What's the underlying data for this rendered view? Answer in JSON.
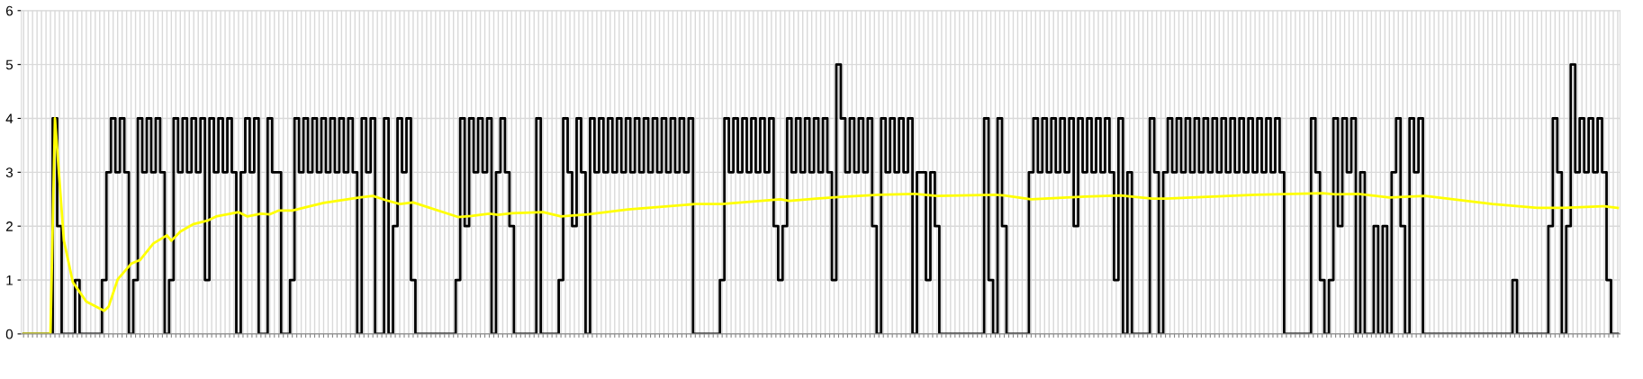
{
  "chart_data": {
    "type": "step",
    "categories": [
      null,
      null,
      null,
      null,
      null,
      null,
      null,
      null,
      null,
      null,
      null,
      null,
      null,
      null,
      null,
      null,
      null,
      null,
      null,
      null,
      null,
      null,
      null,
      null,
      null,
      null,
      null,
      null,
      null,
      null,
      null,
      null,
      null,
      null,
      null,
      null,
      null,
      null,
      null,
      null,
      null,
      null,
      null,
      null,
      null,
      null,
      null,
      null,
      null,
      null,
      null,
      null,
      null,
      null,
      null,
      null,
      null,
      null,
      null,
      null,
      null,
      null,
      null,
      null,
      null,
      null,
      null,
      null,
      null,
      null,
      null,
      null,
      null,
      null,
      null,
      null,
      null,
      null,
      null,
      null,
      null,
      null,
      null,
      null,
      null,
      null,
      null,
      null,
      null,
      null,
      null,
      null,
      null,
      null,
      null,
      null,
      null,
      null,
      null,
      null,
      null,
      null,
      null,
      null,
      null,
      null,
      null,
      null,
      null,
      null,
      null,
      null,
      null,
      null,
      null,
      null,
      null,
      null,
      null,
      null,
      null,
      null,
      null,
      null,
      null,
      null,
      null,
      null,
      null,
      null,
      null,
      null,
      null,
      null,
      null,
      null,
      null,
      null,
      null,
      null,
      null,
      null,
      null,
      null,
      null,
      null,
      null,
      null,
      null,
      null,
      null,
      null,
      null,
      null,
      null,
      null,
      null,
      null,
      null,
      null,
      null,
      null,
      null,
      null,
      null,
      null,
      null,
      null,
      null,
      null,
      null,
      null,
      null,
      null,
      null,
      null,
      null,
      null,
      null,
      null,
      null,
      null,
      null,
      null,
      null,
      null,
      null,
      null,
      null,
      null,
      null,
      null,
      null,
      null,
      null,
      null,
      null,
      null,
      null,
      null,
      null,
      null,
      null,
      null,
      null,
      null,
      null,
      null,
      null,
      null,
      null,
      null,
      null,
      null,
      null,
      null,
      null,
      null,
      null,
      null,
      null,
      null,
      null,
      null,
      null,
      null,
      null,
      null,
      null,
      null,
      null,
      null,
      null,
      null,
      null,
      null,
      null,
      null,
      null,
      null,
      null,
      null,
      null,
      null,
      null,
      null,
      null,
      null,
      null,
      null,
      null,
      null,
      null,
      null,
      null,
      null,
      null,
      null,
      null,
      null,
      null,
      null,
      null,
      null,
      null,
      null,
      null,
      null,
      null,
      null,
      null,
      null,
      null,
      null,
      null,
      null,
      null,
      null,
      null,
      null,
      null,
      null,
      null,
      null,
      null,
      null,
      null,
      null,
      null,
      null,
      null,
      null,
      null,
      null,
      null,
      null,
      null,
      null,
      null,
      null,
      null,
      null,
      null,
      null,
      null,
      null,
      null,
      null,
      null,
      null,
      null,
      null,
      null,
      null,
      null,
      null,
      null,
      null,
      null,
      null,
      null,
      null,
      null,
      null,
      null,
      null,
      null,
      null,
      null,
      null,
      null,
      null,
      null,
      null,
      null,
      null,
      null,
      null,
      null,
      null,
      null,
      null,
      null,
      null,
      null,
      null,
      null,
      null,
      null,
      null,
      null,
      null,
      null,
      null,
      null,
      null,
      null
    ],
    "series": [
      {
        "color": "#000000",
        "values": [
          0,
          0,
          0,
          0,
          0,
          0,
          0,
          4,
          2,
          0,
          0,
          0,
          1,
          0,
          0,
          0,
          0,
          0,
          1,
          3,
          4,
          3,
          4,
          3,
          0,
          1,
          4,
          3,
          4,
          3,
          4,
          3,
          0,
          1,
          4,
          3,
          4,
          3,
          4,
          3,
          4,
          1,
          4,
          3,
          4,
          3,
          4,
          3,
          0,
          3,
          4,
          3,
          4,
          0,
          0,
          4,
          3,
          3,
          0,
          0,
          1,
          4,
          3,
          4,
          3,
          4,
          3,
          4,
          3,
          4,
          3,
          4,
          3,
          4,
          3,
          0,
          4,
          3,
          4,
          0,
          0,
          4,
          0,
          2,
          4,
          3,
          4,
          1,
          0,
          0,
          0,
          0,
          0,
          0,
          0,
          0,
          0,
          1,
          4,
          2,
          4,
          3,
          4,
          3,
          4,
          0,
          3,
          4,
          3,
          2,
          0,
          0,
          0,
          0,
          0,
          4,
          0,
          0,
          0,
          0,
          1,
          4,
          3,
          2,
          4,
          3,
          0,
          4,
          3,
          4,
          3,
          4,
          3,
          4,
          3,
          4,
          3,
          4,
          3,
          4,
          3,
          4,
          3,
          4,
          3,
          4,
          3,
          4,
          3,
          4,
          0,
          0,
          0,
          0,
          0,
          0,
          1,
          4,
          3,
          4,
          3,
          4,
          3,
          4,
          3,
          4,
          3,
          4,
          2,
          1,
          2,
          4,
          3,
          4,
          3,
          4,
          3,
          4,
          3,
          4,
          3,
          1,
          5,
          4,
          3,
          4,
          3,
          4,
          3,
          4,
          2,
          0,
          4,
          3,
          4,
          3,
          4,
          3,
          4,
          0,
          3,
          3,
          1,
          3,
          2,
          0,
          0,
          0,
          0,
          0,
          0,
          0,
          0,
          0,
          0,
          4,
          1,
          0,
          4,
          2,
          0,
          0,
          0,
          0,
          0,
          3,
          4,
          3,
          4,
          3,
          4,
          3,
          4,
          3,
          4,
          2,
          4,
          3,
          4,
          3,
          4,
          3,
          4,
          3,
          1,
          4,
          0,
          3,
          0,
          0,
          0,
          0,
          4,
          3,
          0,
          3,
          4,
          3,
          4,
          3,
          4,
          3,
          4,
          3,
          4,
          3,
          4,
          3,
          4,
          3,
          4,
          3,
          4,
          3,
          4,
          3,
          4,
          3,
          4,
          3,
          4,
          3,
          0,
          0,
          0,
          0,
          0,
          0,
          4,
          3,
          1,
          0,
          1,
          4,
          2,
          4,
          3,
          4,
          0,
          3,
          0,
          0,
          2,
          0,
          2,
          0,
          3,
          4,
          2,
          0,
          4,
          3,
          4,
          0,
          0,
          0,
          0,
          0,
          0,
          0,
          0,
          0,
          0,
          0,
          0,
          0,
          0,
          0,
          0,
          0,
          0,
          0,
          0,
          1,
          0,
          0,
          0,
          0,
          0,
          0,
          0,
          2,
          4,
          3,
          0,
          2,
          5,
          3,
          4,
          3,
          4,
          3,
          4,
          3,
          1,
          0,
          0
        ]
      },
      {
        "type": "line",
        "color": "#ffff00",
        "values": [
          0,
          null,
          null,
          null,
          null,
          null,
          0,
          4,
          null,
          1.73,
          null,
          0.96,
          0.84,
          null,
          0.6,
          null,
          null,
          null,
          0.43,
          0.51,
          null,
          1.01,
          null,
          null,
          1.3,
          1.34,
          1.37,
          null,
          null,
          1.68,
          null,
          null,
          1.83,
          1.73,
          null,
          1.9,
          null,
          null,
          2.04,
          null,
          null,
          2.1,
          null,
          2.18,
          null,
          null,
          null,
          null,
          2.26,
          null,
          2.18,
          null,
          null,
          2.23,
          null,
          2.22,
          null,
          2.29,
          null,
          null,
          2.29,
          null,
          null,
          null,
          null,
          null,
          null,
          2.43,
          null,
          null,
          null,
          null,
          null,
          null,
          null,
          2.53,
          null,
          null,
          2.56,
          null,
          null,
          2.48,
          null,
          null,
          2.41,
          null,
          null,
          2.44,
          null,
          null,
          null,
          null,
          null,
          null,
          null,
          null,
          null,
          2.17,
          null,
          null,
          2.19,
          null,
          null,
          null,
          2.23,
          null,
          2.21,
          null,
          null,
          2.24,
          null,
          null,
          null,
          null,
          null,
          null,
          2.26,
          null,
          null,
          null,
          2.18,
          null,
          null,
          null,
          null,
          null,
          2.22,
          null,
          null,
          null,
          null,
          null,
          null,
          null,
          null,
          2.31,
          null,
          null,
          null,
          null,
          null,
          null,
          null,
          null,
          null,
          null,
          null,
          null,
          null,
          null,
          2.41,
          null,
          null,
          null,
          null,
          null,
          2.41,
          null,
          null,
          null,
          null,
          null,
          null,
          null,
          null,
          null,
          null,
          null,
          null,
          2.5,
          null,
          2.47,
          null,
          null,
          null,
          null,
          null,
          2.51,
          null,
          null,
          null,
          null,
          2.54,
          null,
          null,
          null,
          null,
          null,
          null,
          null,
          null,
          2.58,
          null,
          null,
          null,
          null,
          null,
          null,
          null,
          2.6,
          null,
          null,
          null,
          null,
          2.56,
          null,
          null,
          null,
          null,
          null,
          null,
          null,
          null,
          null,
          null,
          null,
          null,
          2.58,
          null,
          2.57,
          null,
          null,
          null,
          null,
          null,
          2.5,
          null,
          null,
          null,
          null,
          null,
          null,
          null,
          null,
          null,
          null,
          null,
          2.55,
          null,
          null,
          null,
          null,
          null,
          null,
          null,
          2.57,
          null,
          null,
          null,
          null,
          null,
          null,
          2.51,
          null,
          null,
          2.51,
          null,
          null,
          null,
          null,
          null,
          null,
          null,
          null,
          null,
          null,
          null,
          null,
          null,
          null,
          null,
          null,
          null,
          null,
          null,
          2.58,
          null,
          null,
          null,
          null,
          null,
          null,
          null,
          null,
          null,
          null,
          null,
          null,
          null,
          null,
          2.61,
          null,
          null,
          2.59,
          null,
          null,
          null,
          null,
          2.6,
          null,
          null,
          null,
          null,
          null,
          null,
          2.53,
          null,
          null,
          null,
          null,
          null,
          null,
          null,
          2.56,
          null,
          null,
          null,
          null,
          null,
          null,
          null,
          null,
          null,
          null,
          null,
          null,
          null,
          null,
          2.41,
          null,
          null,
          null,
          null,
          null,
          null,
          null,
          null,
          null,
          2.34,
          null,
          null,
          null,
          null,
          null,
          2.34,
          null,
          null,
          null,
          null,
          null,
          null,
          null,
          null,
          2.37,
          null,
          null,
          2.34
        ]
      }
    ],
    "ylim": [
      0,
      6
    ],
    "yticks": [
      0,
      1,
      2,
      3,
      4,
      5,
      6
    ],
    "grid": true,
    "tick_labels": "y"
  }
}
